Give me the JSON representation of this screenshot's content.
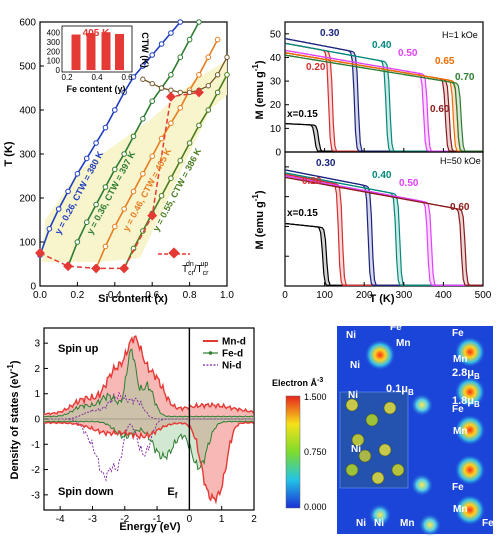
{
  "chart_data": [
    {
      "panel": "a",
      "type": "line",
      "xlabel": "Si content (x)",
      "ylabel": "T (K)",
      "xlim": [
        0.0,
        1.0
      ],
      "ylim": [
        0,
        600
      ],
      "xticks": [
        "0.0",
        "0.2",
        "0.4",
        "0.6",
        "0.8",
        "1.0"
      ],
      "yticks": [
        "0",
        "100",
        "200",
        "300",
        "400",
        "500",
        "600"
      ],
      "series": [
        {
          "name": "y = 0.26, CTW = 380 K",
          "color": "#1f3fbf",
          "x": [
            0,
            0.05,
            0.1,
            0.15,
            0.2,
            0.25,
            0.3,
            0.35,
            0.4,
            0.45,
            0.5,
            0.55,
            0.6,
            0.65,
            0.7,
            0.75
          ],
          "y": [
            70,
            130,
            175,
            215,
            255,
            290,
            325,
            360,
            400,
            440,
            475,
            500,
            525,
            550,
            575,
            600
          ]
        },
        {
          "name": "y = 0.36, CTW = 397 K",
          "color": "#2e7d32",
          "x": [
            0.15,
            0.2,
            0.25,
            0.3,
            0.35,
            0.4,
            0.45,
            0.5,
            0.55,
            0.6,
            0.65,
            0.7,
            0.75,
            0.8,
            0.85
          ],
          "y": [
            45,
            100,
            145,
            185,
            225,
            265,
            300,
            340,
            380,
            420,
            450,
            480,
            520,
            560,
            600
          ]
        },
        {
          "name": "y = 0.46, CTW = 405 K",
          "color": "#e67e22",
          "x": [
            0.3,
            0.35,
            0.4,
            0.45,
            0.5,
            0.55,
            0.6,
            0.65,
            0.7,
            0.75,
            0.8,
            0.85,
            0.9,
            0.95
          ],
          "y": [
            40,
            90,
            135,
            175,
            215,
            255,
            295,
            335,
            370,
            405,
            445,
            480,
            520,
            560
          ]
        },
        {
          "name": "y = 0.55, CTW = 386 K",
          "color": "#4a7d1e",
          "x": [
            0.45,
            0.5,
            0.55,
            0.6,
            0.65,
            0.7,
            0.75,
            0.8,
            0.85,
            0.9,
            0.95,
            1.0
          ],
          "y": [
            40,
            85,
            125,
            165,
            205,
            245,
            285,
            325,
            365,
            400,
            440,
            480
          ]
        }
      ],
      "upper_branch": {
        "x": [
          0.55,
          0.6,
          0.65,
          0.7,
          0.75,
          0.8,
          0.85,
          0.9,
          0.95,
          1.0
        ],
        "y": [
          470,
          460,
          450,
          445,
          440,
          440,
          445,
          455,
          480,
          520
        ]
      },
      "tcr_line": {
        "name": "T_cr^dn/T_cr^up",
        "x": [
          0,
          0.15,
          0.3,
          0.45,
          0.6,
          0.7,
          0.85
        ],
        "y": [
          75,
          45,
          40,
          40,
          160,
          430,
          440
        ]
      },
      "legend_label": "Tcr^dn/Tcr^up",
      "legend_main": "T",
      "legend_sub1": "cr",
      "legend_sup1": "dn",
      "legend_sub2": "cr",
      "legend_sup2": "up",
      "inset": {
        "type": "bar",
        "title": "405 K",
        "xlabel": "Fe content (y)",
        "ylabel": "CTW (K)",
        "xticks": [
          "0.2",
          "0.4",
          "0.6"
        ],
        "yticks": [
          "0",
          "100",
          "200",
          "300",
          "400"
        ],
        "ylim": [
          0,
          450
        ],
        "x": [
          0.26,
          0.36,
          0.46,
          0.55
        ],
        "values": [
          380,
          397,
          405,
          386
        ]
      }
    },
    {
      "panel": "b",
      "type": "line",
      "field": "H=1 kOe",
      "xlabel": "",
      "ylabel": "M (emu g",
      "ylabel_sup": "-1",
      "ylabel_end": ")",
      "xlim": [
        0,
        500
      ],
      "ylim": [
        0,
        55
      ],
      "yticks": [
        "0",
        "10",
        "20",
        "30",
        "40",
        "50"
      ],
      "series_labels": [
        "x=0.15",
        "0.20",
        "0.30",
        "0.40",
        "0.50",
        "0.60",
        "0.65",
        "0.70"
      ],
      "transitions": [
        {
          "label": "x=0.15",
          "color": "#000000",
          "tc": 85,
          "ms": 12
        },
        {
          "label": "0.20",
          "color": "#d32f2f",
          "tc": 120,
          "ms": 46
        },
        {
          "label": "0.30",
          "color": "#1a237e",
          "tc": 185,
          "ms": 48
        },
        {
          "label": "0.40",
          "color": "#00897b",
          "tc": 265,
          "ms": 46
        },
        {
          "label": "0.50",
          "color": "#e040fb",
          "tc": 360,
          "ms": 43
        },
        {
          "label": "0.60",
          "color": "#8b1a1a",
          "tc": 415,
          "ms": 42
        },
        {
          "label": "0.65",
          "color": "#ef6c00",
          "tc": 435,
          "ms": 42
        },
        {
          "label": "0.70",
          "color": "#2e7d32",
          "tc": 445,
          "ms": 41
        }
      ]
    },
    {
      "panel": "c",
      "type": "line",
      "field": "H=50 kOe",
      "xlabel": "T (K)",
      "ylabel": "M (emu g",
      "ylabel_sup": "-1",
      "ylabel_end": ")",
      "xlim": [
        0,
        500
      ],
      "ylim": [
        0,
        90
      ],
      "xticks": [
        "0",
        "100",
        "200",
        "300",
        "400",
        "500"
      ],
      "transitions": [
        {
          "label": "x=0.15",
          "color": "#000000",
          "tc": 105,
          "ms": 42
        },
        {
          "label": "0.20",
          "color": "#d32f2f",
          "tc": 145,
          "ms": 75
        },
        {
          "label": "0.30",
          "color": "#1a237e",
          "tc": 220,
          "ms": 78
        },
        {
          "label": "0.40",
          "color": "#00897b",
          "tc": 290,
          "ms": 76
        },
        {
          "label": "0.50",
          "color": "#e040fb",
          "tc": 370,
          "ms": 74
        },
        {
          "label": "0.60",
          "color": "#8b1a1a",
          "tc": 455,
          "ms": 73
        }
      ]
    },
    {
      "panel": "d",
      "type": "line",
      "xlabel": "Energy (eV)",
      "ylabel": "Density of states (eV",
      "ylabel_sup": "-1",
      "ylabel_end": ")",
      "xlim": [
        -4.5,
        2
      ],
      "ylim": [
        -3.6,
        3.6
      ],
      "xticks": [
        "-4",
        "-3",
        "-2",
        "-1",
        "0",
        "1",
        "2"
      ],
      "yticks": [
        "-3",
        "-2",
        "-1",
        "0",
        "1",
        "2",
        "3"
      ],
      "legend": [
        {
          "name": "Mn-d",
          "color": "#e53935"
        },
        {
          "name": "Fe-d",
          "color": "#2e7d32"
        },
        {
          "name": "Ni-d",
          "color": "#7b1fa2"
        }
      ],
      "annotations": [
        "Spin up",
        "Spin down",
        "E"
      ],
      "ef_sub": "f"
    }
  ],
  "panel_e": {
    "colorbar_title": "Electron Å",
    "colorbar_sup": "-3",
    "colorbar_ticks": [
      "1.500",
      "0.750",
      "0.000"
    ],
    "atom_labels": [
      "Ni",
      "Fe",
      "Mn",
      "Ni",
      "Ni",
      "Fe",
      "Mn",
      "Ni",
      "Ni",
      "Fe",
      "Mn",
      "Fe",
      "Mn",
      "Ni",
      "Mn",
      "Fe"
    ],
    "moments": [
      {
        "base": "2.8μ",
        "sub": "B"
      },
      {
        "base": "0.1μ",
        "sub": "B"
      },
      {
        "base": "1.8μ",
        "sub": "B"
      }
    ]
  }
}
